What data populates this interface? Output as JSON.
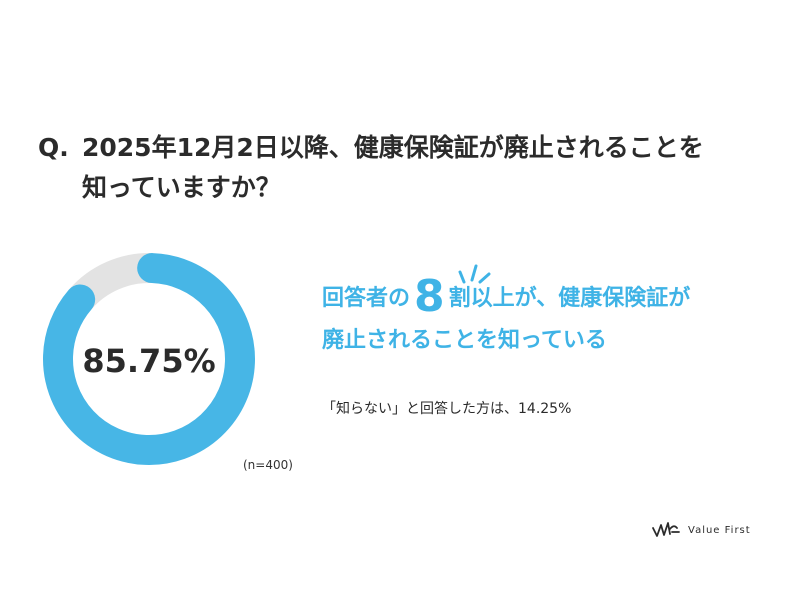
{
  "question": {
    "prefix": "Q.",
    "line1": "2025年12月2日以降、健康保険証が廃止されることを",
    "line2": "知っていますか？"
  },
  "chart_data": {
    "type": "pie",
    "variant": "donut",
    "categories": [
      "知っている",
      "知らない"
    ],
    "values": [
      85.75,
      14.25
    ],
    "center_label": "85.75%",
    "sample_size_label": "(n=400)",
    "colors": [
      "#47b6e6",
      "#e3e3e3"
    ]
  },
  "headline": {
    "part1": "回答者の",
    "number": "8",
    "part2": "割以上が、健康保険証が",
    "line2": "廃止されることを知っている"
  },
  "subtext": "「知らない」と回答した方は、14.25%",
  "logo": {
    "text": "Value First",
    "icon": "value-first-logo-icon"
  },
  "accent_color": "#3fb3e6"
}
